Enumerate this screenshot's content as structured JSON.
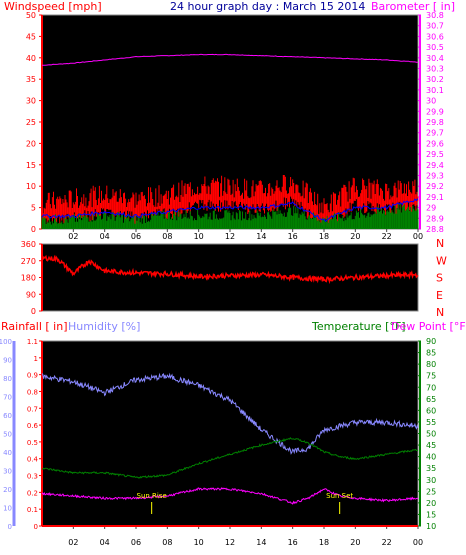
{
  "header": {
    "wind_title": "Windspeed [mph]",
    "date_title": "24 hour graph day : March 15 2014",
    "baro_title": "Barometer [ in]"
  },
  "bottom_header": {
    "rain_title": "Rainfall [ in]",
    "hum_title": "Humidity [%]",
    "temp_title": "Temperature [°F]",
    "dew_title": "Dew Point [°F]"
  },
  "annotations": {
    "sunrise": "Sun Rise",
    "sunset": "Sun Set"
  },
  "colors": {
    "background": "#000000",
    "frame": "#ffffff",
    "wind": "#ff0000",
    "wind_avg": "#0000ff",
    "gust": "#008000",
    "baro": "#ff00ff",
    "direction": "#ff0000",
    "rain": "#ff0000",
    "humidity": "#8888ff",
    "temperature": "#008000",
    "dewpoint": "#ff00ff",
    "annotation": "#ffff00"
  },
  "chart_data": [
    {
      "type": "line",
      "title": "24 hour graph day : March 15 2014",
      "x_ticks": [
        "02",
        "04",
        "06",
        "08",
        "10",
        "12",
        "14",
        "16",
        "18",
        "20",
        "22",
        "00"
      ],
      "left_axis": {
        "label": "Windspeed [mph]",
        "ylim": [
          0,
          50
        ],
        "ticks": [
          0,
          5,
          10,
          15,
          20,
          25,
          30,
          35,
          40,
          45,
          50
        ]
      },
      "right_axis": {
        "label": "Barometer [ in]",
        "ylim": [
          28.8,
          30.8
        ],
        "ticks": [
          "28.8",
          "28.9",
          "29",
          "29.1",
          "29.2",
          "29.3",
          "29.4",
          "29.5",
          "29.6",
          "29.7",
          "29.8",
          "29.9",
          "30",
          "30.1",
          "30.2",
          "30.3",
          "30.4",
          "30.5",
          "30.6",
          "30.7",
          "30.8"
        ]
      },
      "hours": [
        0,
        2,
        4,
        6,
        8,
        10,
        12,
        14,
        16,
        18,
        20,
        22,
        24
      ],
      "series": [
        {
          "axis": "right",
          "values": [
            30.33,
            30.35,
            30.38,
            30.41,
            30.42,
            30.43,
            30.43,
            30.42,
            30.41,
            30.4,
            30.39,
            30.38,
            30.36
          ]
        },
        {
          "axis": "left",
          "values": [
            5,
            6,
            7,
            6,
            7,
            9,
            9,
            8,
            10,
            4,
            9,
            8,
            9
          ]
        },
        {
          "axis": "left",
          "values": [
            3,
            3,
            4,
            3,
            4,
            5,
            5,
            5,
            6,
            2,
            5,
            5,
            7
          ]
        },
        {
          "axis": "left",
          "values": [
            1,
            1,
            2,
            1,
            2,
            2,
            2,
            2,
            3,
            1,
            2,
            3,
            4
          ]
        }
      ]
    },
    {
      "type": "line",
      "left_axis": {
        "ylim": [
          0,
          360
        ],
        "ticks": [
          0,
          90,
          180,
          270,
          360
        ]
      },
      "right_axis": {
        "ticks": [
          "N",
          "W",
          "S",
          "E",
          "N"
        ]
      },
      "hours": [
        0,
        1,
        2,
        3,
        4,
        6,
        8,
        10,
        12,
        14,
        16,
        18,
        20,
        22,
        24
      ],
      "series": [
        {
          "values": [
            285,
            280,
            200,
            270,
            215,
            205,
            200,
            185,
            190,
            195,
            180,
            170,
            180,
            190,
            195
          ]
        }
      ]
    },
    {
      "type": "line",
      "x_ticks": [
        "02",
        "04",
        "06",
        "08",
        "10",
        "12",
        "14",
        "16",
        "18",
        "20",
        "22",
        "00"
      ],
      "left_axis": {
        "label": "Rainfall [ in]",
        "ylim": [
          0,
          1.1
        ],
        "ticks": [
          "0",
          "0.1",
          "0.2",
          "0.3",
          "0.4",
          "0.5",
          "0.6",
          "0.7",
          "0.8",
          "0.9",
          "1",
          "1.1"
        ]
      },
      "humidity_axis": {
        "label": "Humidity [%]",
        "ylim": [
          0,
          100
        ],
        "ticks": [
          0,
          10,
          20,
          30,
          40,
          50,
          60,
          70,
          80,
          90,
          100
        ]
      },
      "right_axis": {
        "label": "Temperature [°F] / Dew Point [°F]",
        "ylim": [
          10,
          90
        ],
        "ticks": [
          10,
          15,
          20,
          25,
          30,
          35,
          40,
          45,
          50,
          55,
          60,
          65,
          70,
          75,
          80,
          85,
          90
        ]
      },
      "hours": [
        0,
        2,
        4,
        6,
        8,
        10,
        12,
        14,
        16,
        17,
        18,
        19,
        20,
        22,
        24
      ],
      "series": [
        {
          "axis": "humidity",
          "values": [
            81,
            78,
            72,
            79,
            81,
            76,
            68,
            52,
            40,
            42,
            52,
            54,
            56,
            56,
            54
          ]
        },
        {
          "axis": "right",
          "values": [
            35,
            33,
            33,
            31,
            32,
            37,
            41,
            45,
            48,
            46,
            42,
            40,
            39,
            41,
            43
          ]
        },
        {
          "axis": "right",
          "values": [
            24,
            23,
            22,
            22,
            23,
            26,
            26,
            24,
            20,
            22,
            26,
            23,
            22,
            21,
            22
          ]
        },
        {
          "axis": "left",
          "values": [
            0,
            0,
            0,
            0,
            0,
            0,
            0,
            0,
            0,
            0,
            0,
            0,
            0,
            0,
            0
          ]
        }
      ]
    }
  ]
}
